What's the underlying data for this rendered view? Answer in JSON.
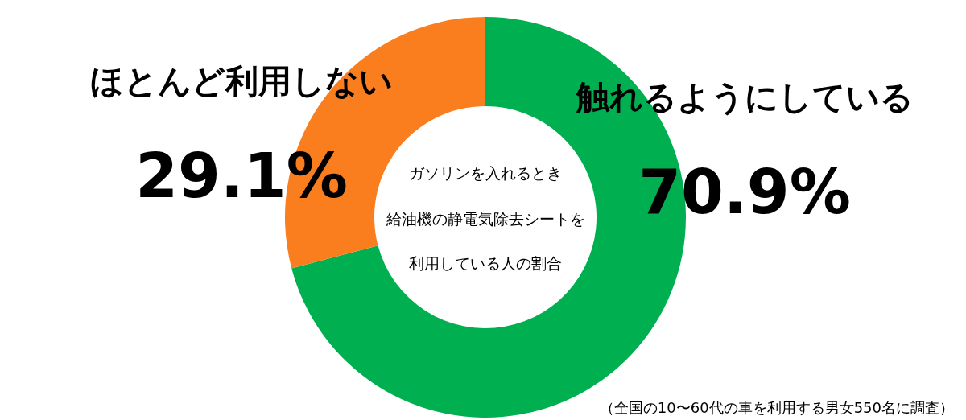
{
  "chart_data": {
    "type": "donut",
    "title": "ガソリンを入れるとき",
    "subtitle": "給油機の静電気除去シートを利用している人の割合",
    "categories": [
      "触れるようにしている",
      "ほとんど利用しない"
    ],
    "values": [
      70.9,
      29.1
    ],
    "value_labels": [
      "70.9%",
      "29.1%"
    ],
    "colors": [
      "#00b050",
      "#fa7d1e"
    ],
    "annotations": [
      "（全国の10〜60代の車を利用する男女550名に調査）"
    ]
  }
}
